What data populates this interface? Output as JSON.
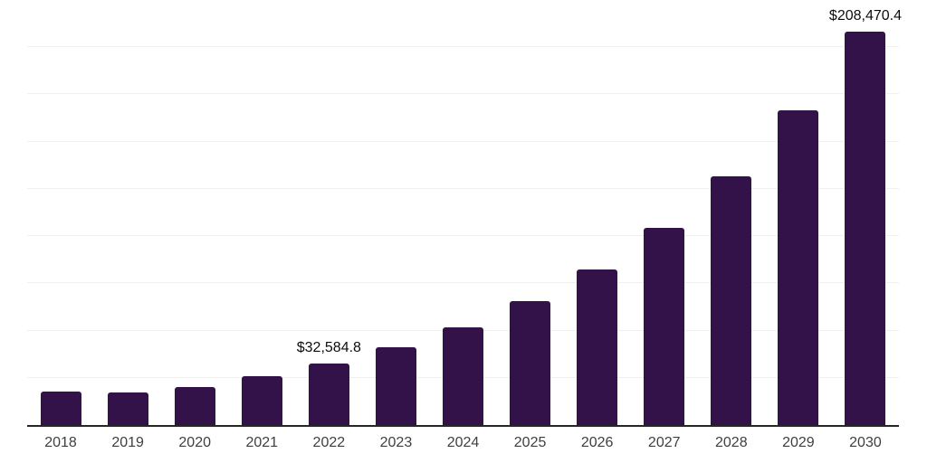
{
  "chart_data": {
    "type": "bar",
    "title": "",
    "xlabel": "",
    "ylabel": "",
    "categories": [
      "2018",
      "2019",
      "2020",
      "2021",
      "2022",
      "2023",
      "2024",
      "2025",
      "2026",
      "2027",
      "2028",
      "2029",
      "2030"
    ],
    "values": [
      17500,
      17100,
      20300,
      25800,
      32584.8,
      41100,
      51800,
      65400,
      82500,
      104600,
      131700,
      166500,
      208470.4
    ],
    "labeled_points": [
      {
        "category": "2022",
        "label": "$32,584.8"
      },
      {
        "category": "2030",
        "label": "$208,470.4"
      }
    ],
    "ylim": [
      0,
      225000
    ],
    "gridline_step": 25000,
    "grid": true,
    "legend": false,
    "colors": {
      "bar": "#331249",
      "axis_line": "#262626",
      "gridline": "#f0f0f0",
      "value_label": "#0d0d0d",
      "tick_label": "#3f3f3f",
      "background": "#ffffff"
    }
  }
}
